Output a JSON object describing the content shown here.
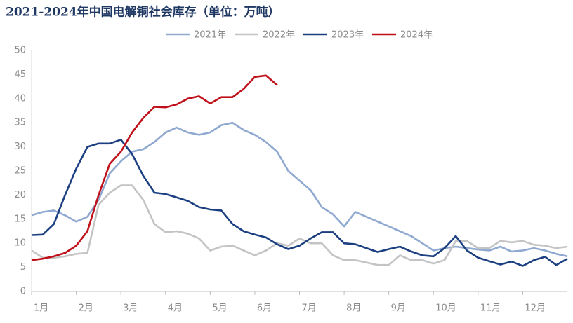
{
  "chart_data": {
    "type": "line",
    "title": "2021-2024年中国电解铜社会库存（单位：万吨）",
    "x": [
      0,
      0.25,
      0.5,
      0.75,
      1,
      1.25,
      1.5,
      1.75,
      2,
      2.25,
      2.5,
      2.75,
      3,
      3.25,
      3.5,
      3.75,
      4,
      4.25,
      4.5,
      4.75,
      5,
      5.25,
      5.5,
      5.75,
      6,
      6.25,
      6.5,
      6.75,
      7,
      7.25,
      7.5,
      7.75,
      8,
      8.25,
      8.5,
      8.75,
      9,
      9.25,
      9.5,
      9.75,
      10,
      10.25,
      10.5,
      10.75,
      11,
      11.25,
      11.5,
      11.75,
      12
    ],
    "xlim": [
      0,
      12
    ],
    "xticks": [
      {
        "value": 0,
        "label": "1月"
      },
      {
        "value": 1,
        "label": "2月"
      },
      {
        "value": 2,
        "label": "3月"
      },
      {
        "value": 3,
        "label": "4月"
      },
      {
        "value": 4,
        "label": "5月"
      },
      {
        "value": 5,
        "label": "6月"
      },
      {
        "value": 6,
        "label": "7月"
      },
      {
        "value": 7,
        "label": "8月"
      },
      {
        "value": 8,
        "label": "9月"
      },
      {
        "value": 9,
        "label": "10月"
      },
      {
        "value": 10,
        "label": "11月"
      },
      {
        "value": 11,
        "label": "12月"
      }
    ],
    "ylim": [
      0,
      50
    ],
    "yticks": [
      0,
      5,
      10,
      15,
      20,
      25,
      30,
      35,
      40,
      45,
      50
    ],
    "legend": "top",
    "series": [
      {
        "name": "2021年",
        "color": "#8fa9d0",
        "values": [
          15.8,
          16.5,
          16.8,
          15.8,
          14.5,
          15.5,
          19,
          24.5,
          27,
          29,
          29.5,
          31,
          33,
          34,
          33,
          32.5,
          33,
          34.5,
          35,
          33.5,
          32.5,
          31,
          29,
          25,
          23,
          21,
          17.5,
          16,
          13.5,
          16.5,
          15.5,
          14.5,
          13.5,
          12.5,
          11.5,
          10,
          8.5,
          9,
          9.3,
          9,
          8.7,
          8.5,
          9.3,
          8.3,
          8.5,
          9,
          8.5,
          7.8,
          7.3
        ]
      },
      {
        "name": "2022年",
        "color": "#c4c4c4",
        "values": [
          8.5,
          7,
          7,
          7.3,
          7.8,
          8,
          18,
          20.5,
          22,
          22,
          19,
          14,
          12.3,
          12.5,
          12,
          11,
          8.5,
          9.3,
          9.5,
          8.5,
          7.5,
          8.5,
          10,
          9.5,
          11,
          10,
          10,
          7.5,
          6.5,
          6.5,
          6,
          5.5,
          5.5,
          7.5,
          6.5,
          6.5,
          5.8,
          6.5,
          10.5,
          10.5,
          9,
          9,
          10.5,
          10.2,
          10.5,
          9.7,
          9.5,
          9,
          9.3
        ]
      },
      {
        "name": "2023年",
        "color": "#1b3f80",
        "values": [
          11.7,
          11.8,
          14,
          20,
          25.5,
          30,
          30.7,
          30.7,
          31.5,
          28.5,
          24,
          20.5,
          20.2,
          19.5,
          18.8,
          17.5,
          17,
          16.8,
          14,
          12.5,
          11.8,
          11.2,
          9.8,
          8.8,
          9.5,
          11,
          12.3,
          12.3,
          10,
          9.8,
          9,
          8.2,
          8.8,
          9.3,
          8.3,
          7.5,
          7.3,
          9,
          11.5,
          8.5,
          7,
          6.3,
          5.6,
          6.2,
          5.3,
          6.5,
          7.2,
          5.5,
          6.8
        ]
      },
      {
        "name": "2024年",
        "color": "#c0101a",
        "values": [
          6.5,
          6.8,
          7.3,
          8,
          9.5,
          12.5,
          20,
          26.5,
          29,
          33,
          36,
          38.3,
          38.2,
          38.8,
          40,
          40.5,
          39,
          40.3,
          40.3,
          42,
          44.5,
          44.8,
          42.8,
          null,
          null,
          null,
          null,
          null,
          null,
          null,
          null,
          null,
          null,
          null,
          null,
          null,
          null,
          null,
          null,
          null,
          null,
          null,
          null,
          null,
          null,
          null,
          null,
          null,
          null
        ]
      }
    ]
  }
}
